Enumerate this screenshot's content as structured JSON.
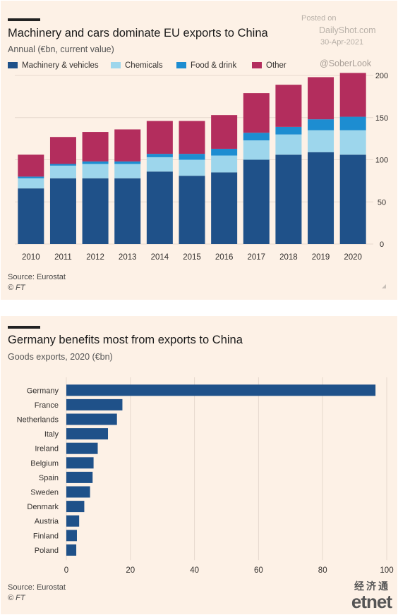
{
  "watermark": {
    "posted_label": "Posted on",
    "site": "DailyShot.com",
    "date": "30-Apr-2021",
    "handle": "@SoberLook"
  },
  "chart1": {
    "title": "Machinery and cars dominate EU exports to China",
    "subtitle": "Annual (€bn, current value)",
    "source": "Source: Eurostat",
    "copyright": "© FT"
  },
  "chart2": {
    "title": "Germany benefits most from exports to China",
    "subtitle": "Goods exports, 2020 (€bn)",
    "source": "Source: Eurostat",
    "copyright": "© FT"
  },
  "brand": {
    "cn": "经济通",
    "word": "etnet"
  },
  "chart_data": [
    {
      "type": "bar",
      "stacked": true,
      "title": "Machinery and cars dominate EU exports to China",
      "subtitle": "Annual (€bn, current value)",
      "categories": [
        "2010",
        "2011",
        "2012",
        "2013",
        "2014",
        "2015",
        "2016",
        "2017",
        "2018",
        "2019",
        "2020"
      ],
      "series": [
        {
          "name": "Machinery & vehicles",
          "color": "#1f5189",
          "values": [
            66,
            78,
            78,
            78,
            86,
            81,
            85,
            100,
            106,
            109,
            106
          ]
        },
        {
          "name": "Chemicals",
          "color": "#9dd6ec",
          "values": [
            12,
            15,
            17,
            17,
            17,
            19,
            20,
            23,
            24,
            26,
            29
          ]
        },
        {
          "name": "Food & drink",
          "color": "#1d8dd1",
          "values": [
            2,
            2,
            3,
            3,
            4,
            7,
            8,
            9,
            9,
            13,
            16
          ]
        },
        {
          "name": "Other",
          "color": "#b32d5d",
          "values": [
            26,
            32,
            35,
            38,
            39,
            39,
            40,
            47,
            50,
            50,
            52
          ]
        }
      ],
      "ylim": [
        0,
        200
      ],
      "yticks": [
        0,
        50,
        100,
        150,
        200
      ],
      "y_axis_side": "right",
      "grid": true,
      "legend": "top",
      "source": "Source: Eurostat"
    },
    {
      "type": "bar",
      "orientation": "horizontal",
      "title": "Germany benefits most from exports to China",
      "subtitle": "Goods exports, 2020 (€bn)",
      "categories": [
        "Germany",
        "France",
        "Netherlands",
        "Italy",
        "Ireland",
        "Belgium",
        "Spain",
        "Sweden",
        "Denmark",
        "Austria",
        "Finland",
        "Poland"
      ],
      "values": [
        96.5,
        17.5,
        15.8,
        13,
        9.8,
        8.5,
        8.2,
        7.4,
        5.6,
        4,
        3.3,
        3.1
      ],
      "color": "#1f5189",
      "xlim": [
        0,
        100
      ],
      "xticks": [
        0,
        20,
        40,
        60,
        80,
        100
      ],
      "grid": true,
      "source": "Source: Eurostat"
    }
  ]
}
